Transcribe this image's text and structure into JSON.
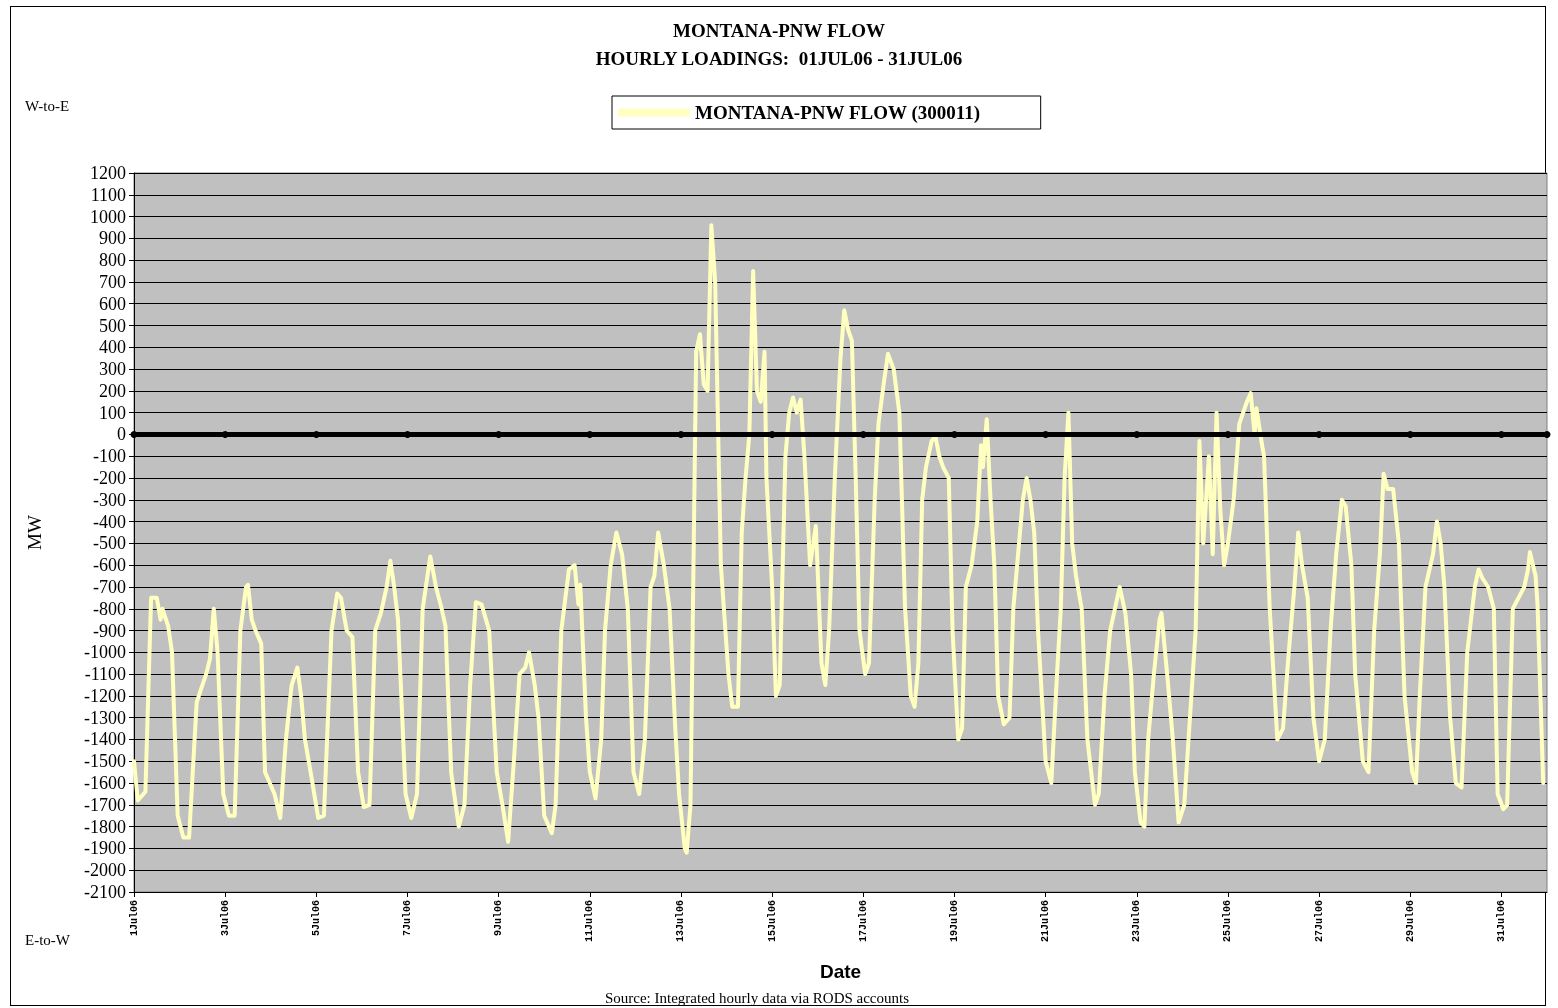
{
  "chart_data": {
    "type": "line",
    "title": "MONTANA-PNW FLOW",
    "subtitle": "HOURLY LOADINGS:  01JUL06 - 31JUL06",
    "xlabel": "Date",
    "ylabel": "MW",
    "annotations": [
      "W-to-E",
      "E-to-W",
      "Source: Integrated hourly data via RODS accounts"
    ],
    "legend": "top",
    "grid": "y",
    "line_style": "solid",
    "xlim": [
      "--07-01",
      "--08-01"
    ],
    "xticks": [
      {
        "value": "--07-01",
        "label": "1Jul06"
      },
      {
        "value": "--07-03",
        "label": "3Jul06"
      },
      {
        "value": "--07-05",
        "label": "5Jul06"
      },
      {
        "value": "--07-07",
        "label": "7Jul06"
      },
      {
        "value": "--07-09",
        "label": "9Jul06"
      },
      {
        "value": "--07-11",
        "label": "11Jul06"
      },
      {
        "value": "--07-13",
        "label": "13Jul06"
      },
      {
        "value": "--07-15",
        "label": "15Jul06"
      },
      {
        "value": "--07-17",
        "label": "17Jul06"
      },
      {
        "value": "--07-19",
        "label": "19Jul06"
      },
      {
        "value": "--07-21",
        "label": "21Jul06"
      },
      {
        "value": "--07-23",
        "label": "23Jul06"
      },
      {
        "value": "--07-25",
        "label": "25Jul06"
      },
      {
        "value": "--07-27",
        "label": "27Jul06"
      },
      {
        "value": "--07-29",
        "label": "29Jul06"
      },
      {
        "value": "--07-31",
        "label": "31Jul06"
      }
    ],
    "ylim": [
      -2100,
      1200
    ],
    "yticks": [
      -2100,
      -2000,
      -1900,
      -1800,
      -1700,
      -1600,
      -1500,
      -1400,
      -1300,
      -1200,
      -1100,
      -1000,
      -900,
      -800,
      -700,
      -600,
      -500,
      -400,
      -300,
      -200,
      -100,
      0,
      100,
      200,
      300,
      400,
      500,
      600,
      700,
      800,
      900,
      1000,
      1100,
      1200
    ],
    "series": [
      {
        "name": "MONTANA-PNW FLOW (300011)",
        "color": "#ffffc0",
        "marker": "none",
        "x": [
          "--07-01T00:00",
          "--07-01T02:00",
          "--07-01T06:00",
          "--07-01T09:00",
          "--07-01T12:00",
          "--07-01T14:00",
          "--07-01T15:00",
          "--07-01T18:00",
          "--07-01T20:00",
          "--07-01T23:00",
          "--07-02T02:00",
          "--07-02T05:00",
          "--07-02T09:00",
          "--07-02T12:00",
          "--07-02T14:00",
          "--07-02T16:00",
          "--07-02T18:00",
          "--07-02T20:00",
          "--07-02T23:00",
          "--07-03T02:00",
          "--07-03T05:00",
          "--07-03T08:00",
          "--07-03T11:00",
          "--07-03T12:00",
          "--07-03T14:00",
          "--07-03T16:00",
          "--07-03T19:00",
          "--07-03T21:00",
          "--07-04T02:00",
          "--07-04T05:00",
          "--07-04T08:00",
          "--07-04T11:00",
          "--07-04T14:00",
          "--07-04T16:00",
          "--07-04T18:00",
          "--07-04T21:00",
          "--07-05T01:00",
          "--07-05T04:00",
          "--07-05T08:00",
          "--07-05T11:00",
          "--07-05T13:00",
          "--07-05T16:00",
          "--07-05T19:00",
          "--07-05T22:00",
          "--07-06T01:00",
          "--07-06T04:00",
          "--07-06T07:00",
          "--07-06T10:00",
          "--07-06T13:00",
          "--07-06T15:00",
          "--07-06T17:00",
          "--07-06T19:00",
          "--07-06T23:00",
          "--07-07T02:00",
          "--07-07T05:00",
          "--07-07T08:00",
          "--07-07T12:00",
          "--07-07T15:00",
          "--07-07T18:00",
          "--07-07T20:00",
          "--07-07T23:00",
          "--07-08T03:00",
          "--07-08T06:00",
          "--07-08T09:00",
          "--07-08T12:00",
          "--07-08T15:00",
          "--07-08T19:00",
          "--07-08T23:00",
          "--07-09T02:00",
          "--07-09T05:00",
          "--07-09T08:00",
          "--07-09T11:00",
          "--07-09T14:00",
          "--07-09T16:00",
          "--07-09T19:00",
          "--07-09T21:00",
          "--07-10T00:00",
          "--07-10T04:00",
          "--07-10T06:00",
          "--07-10T09:00",
          "--07-10T13:00",
          "--07-10T16:00",
          "--07-10T18:00",
          "--07-10T19:00",
          "--07-10T22:00",
          "--07-11T00:00",
          "--07-11T03:00",
          "--07-11T06:00",
          "--07-11T08:00",
          "--07-11T11:00",
          "--07-11T14:00",
          "--07-11T17:00",
          "--07-11T20:00",
          "--07-11T23:00",
          "--07-12T02:00",
          "--07-12T05:00",
          "--07-12T08:00",
          "--07-12T10:00",
          "--07-12T12:00",
          "--07-12T15:00",
          "--07-12T18:00",
          "--07-12T21:00",
          "--07-12T23:00",
          "--07-13T02:00",
          "--07-13T03:00",
          "--07-13T05:00",
          "--07-13T08:00",
          "--07-13T10:00",
          "--07-13T12:00",
          "--07-13T14:00",
          "--07-13T16:00",
          "--07-13T18:00",
          "--07-13T21:00",
          "--07-14T01:00",
          "--07-14T03:00",
          "--07-14T06:00",
          "--07-14T08:00",
          "--07-14T10:00",
          "--07-14T12:00",
          "--07-14T14:00",
          "--07-14T16:00",
          "--07-14T18:00",
          "--07-14T20:00",
          "--07-14T21:00",
          "--07-15T00:00",
          "--07-15T02:00",
          "--07-15T04:00",
          "--07-15T07:00",
          "--07-15T09:00",
          "--07-15T11:00",
          "--07-15T13:00",
          "--07-15T15:00",
          "--07-15T17:00",
          "--07-15T20:00",
          "--07-15T23:00",
          "--07-16T02:00",
          "--07-16T04:00",
          "--07-16T06:00",
          "--07-16T09:00",
          "--07-16T12:00",
          "--07-16T14:00",
          "--07-16T16:00",
          "--07-16T18:00",
          "--07-16T20:00",
          "--07-16T22:00",
          "--07-17T01:00",
          "--07-17T03:00",
          "--07-17T06:00",
          "--07-17T08:00",
          "--07-17T11:00",
          "--07-17T13:00",
          "--07-17T16:00",
          "--07-17T19:00",
          "--07-17T22:00",
          "--07-18T01:00",
          "--07-18T03:00",
          "--07-18T05:00",
          "--07-18T07:00",
          "--07-18T09:00",
          "--07-18T12:00",
          "--07-18T14:00",
          "--07-18T16:00",
          "--07-18T18:00",
          "--07-18T21:00",
          "--07-18T23:00",
          "--07-19T02:00",
          "--07-19T04:00",
          "--07-19T06:00",
          "--07-19T09:00",
          "--07-19T12:00",
          "--07-19T14:00",
          "--07-19T15:00",
          "--07-19T17:00",
          "--07-19T19:00",
          "--07-19T21:00",
          "--07-19T23:00",
          "--07-20T02:00",
          "--07-20T05:00",
          "--07-20T07:00",
          "--07-20T09:00",
          "--07-20T12:00",
          "--07-20T14:00",
          "--07-20T16:00",
          "--07-20T18:00",
          "--07-20T20:00",
          "--07-21T00:00",
          "--07-21T03:00",
          "--07-21T06:00",
          "--07-21T08:00",
          "--07-21T10:00",
          "--07-21T12:00",
          "--07-21T14:00",
          "--07-21T16:00",
          "--07-21T19:00",
          "--07-21T22:00",
          "--07-22T02:00",
          "--07-22T04:00",
          "--07-22T07:00",
          "--07-22T10:00",
          "--07-22T13:00",
          "--07-22T15:00",
          "--07-22T18:00",
          "--07-22T21:00",
          "--07-22T23:00",
          "--07-23T02:00",
          "--07-23T04:00",
          "--07-23T06:00",
          "--07-23T09:00",
          "--07-23T12:00",
          "--07-23T13:00",
          "--07-23T16:00",
          "--07-23T19:00",
          "--07-23T22:00",
          "--07-24T01:00",
          "--07-24T04:00",
          "--07-24T07:00",
          "--07-24T09:00",
          "--07-24T11:00",
          "--07-24T14:00",
          "--07-24T16:00",
          "--07-24T18:00",
          "--07-24T20:00",
          "--07-24T22:00",
          "--07-25T00:00",
          "--07-25T03:00",
          "--07-25T06:00",
          "--07-25T10:00",
          "--07-25T12:00",
          "--07-25T14:00",
          "--07-25T15:00",
          "--07-25T18:00",
          "--07-25T19:00",
          "--07-25T22:00",
          "--07-26T02:00",
          "--07-26T05:00",
          "--07-26T08:00",
          "--07-26T11:00",
          "--07-26T13:00",
          "--07-26T15:00",
          "--07-26T18:00",
          "--07-26T21:00",
          "--07-27T00:00",
          "--07-27T03:00",
          "--07-27T06:00",
          "--07-27T09:00",
          "--07-27T12:00",
          "--07-27T14:00",
          "--07-27T17:00",
          "--07-27T19:00",
          "--07-27T23:00",
          "--07-28T02:00",
          "--07-28T05:00",
          "--07-28T08:00",
          "--07-28T10:00",
          "--07-28T12:00",
          "--07-28T15:00",
          "--07-28T18:00",
          "--07-28T21:00",
          "--07-29T01:00",
          "--07-29T03:00",
          "--07-29T05:00",
          "--07-29T08:00",
          "--07-29T12:00",
          "--07-29T14:00",
          "--07-29T16:00",
          "--07-29T18:00",
          "--07-29T21:00",
          "--07-30T00:00",
          "--07-30T03:00",
          "--07-30T06:00",
          "--07-30T10:00",
          "--07-30T12:00",
          "--07-30T14:00",
          "--07-30T17:00",
          "--07-30T20:00",
          "--07-30T22:00",
          "--07-31T01:00",
          "--07-31T03:00",
          "--07-31T06:00",
          "--07-31T09:00",
          "--07-31T12:00",
          "--07-31T14:00",
          "--07-31T15:00",
          "--07-31T18:00",
          "--07-31T19:00",
          "--07-31T22:00"
        ],
        "values": [
          -1500,
          -1680,
          -1640,
          -750,
          -750,
          -850,
          -800,
          -880,
          -1000,
          -1750,
          -1850,
          -1850,
          -1230,
          -1150,
          -1100,
          -1030,
          -800,
          -1000,
          -1650,
          -1750,
          -1750,
          -900,
          -700,
          -690,
          -850,
          -900,
          -960,
          -1550,
          -1650,
          -1760,
          -1400,
          -1150,
          -1070,
          -1200,
          -1400,
          -1550,
          -1760,
          -1750,
          -900,
          -730,
          -750,
          -900,
          -930,
          -1550,
          -1710,
          -1700,
          -900,
          -820,
          -700,
          -580,
          -700,
          -850,
          -1650,
          -1760,
          -1650,
          -800,
          -560,
          -700,
          -800,
          -880,
          -1550,
          -1800,
          -1700,
          -1150,
          -770,
          -780,
          -900,
          -1550,
          -1700,
          -1870,
          -1500,
          -1100,
          -1070,
          -1000,
          -1150,
          -1300,
          -1750,
          -1830,
          -1700,
          -900,
          -620,
          -600,
          -780,
          -690,
          -1300,
          -1550,
          -1670,
          -1400,
          -900,
          -600,
          -450,
          -550,
          -800,
          -1550,
          -1650,
          -1400,
          -700,
          -650,
          -450,
          -600,
          -800,
          -1350,
          -1650,
          -1900,
          -1920,
          -1700,
          380,
          460,
          230,
          200,
          960,
          700,
          -600,
          -1100,
          -1250,
          -1250,
          -450,
          -200,
          0,
          750,
          200,
          150,
          380,
          -200,
          -700,
          -1200,
          -1150,
          -100,
          100,
          170,
          100,
          160,
          -100,
          -600,
          -420,
          -1050,
          -1150,
          -900,
          -200,
          350,
          570,
          480,
          430,
          -200,
          -900,
          -1100,
          -1050,
          -300,
          50,
          250,
          370,
          300,
          100,
          -800,
          -1200,
          -1250,
          -1050,
          -300,
          -150,
          -30,
          -10,
          -100,
          -150,
          -200,
          -900,
          -1400,
          -1350,
          -700,
          -600,
          -400,
          -50,
          -150,
          70,
          -300,
          -600,
          -1200,
          -1330,
          -1300,
          -800,
          -600,
          -300,
          -200,
          -300,
          -450,
          -900,
          -1500,
          -1600,
          -1100,
          -800,
          -200,
          100,
          -500,
          -650,
          -800,
          -1400,
          -1700,
          -1650,
          -1200,
          -900,
          -780,
          -700,
          -820,
          -1100,
          -1550,
          -1780,
          -1800,
          -1400,
          -1100,
          -850,
          -820,
          -1100,
          -1400,
          -1780,
          -1700,
          -1300,
          -900,
          -30,
          -500,
          -100,
          -550,
          100,
          -350,
          -600,
          -500,
          -300,
          50,
          150,
          190,
          0,
          120,
          -50,
          -100,
          -800,
          -1400,
          -1350,
          -1000,
          -700,
          -450,
          -600,
          -750,
          -1300,
          -1500,
          -1400,
          -900,
          -550,
          -300,
          -330,
          -600,
          -1100,
          -1500,
          -1550,
          -900,
          -550,
          -180,
          -250,
          -250,
          -500,
          -1200,
          -1550,
          -1600,
          -1200,
          -700,
          -550,
          -400,
          -500,
          -700,
          -1300,
          -1600,
          -1620,
          -1000,
          -700,
          -620,
          -660,
          -700,
          -800,
          -1650,
          -1720,
          -1700,
          -800,
          -750,
          -700,
          -620,
          -540,
          -650,
          -780,
          -1600
        ]
      },
      {
        "color": "#000000",
        "marker": "circle",
        "x": [
          "--07-01",
          "--07-03",
          "--07-05",
          "--07-07",
          "--07-09",
          "--07-11",
          "--07-13",
          "--07-15",
          "--07-17",
          "--07-19",
          "--07-21",
          "--07-23",
          "--07-25",
          "--07-27",
          "--07-29",
          "--07-31",
          "--08-01"
        ],
        "values": [
          0,
          0,
          0,
          0,
          0,
          0,
          0,
          0,
          0,
          0,
          0,
          0,
          0,
          0,
          0,
          0,
          0
        ]
      }
    ]
  }
}
